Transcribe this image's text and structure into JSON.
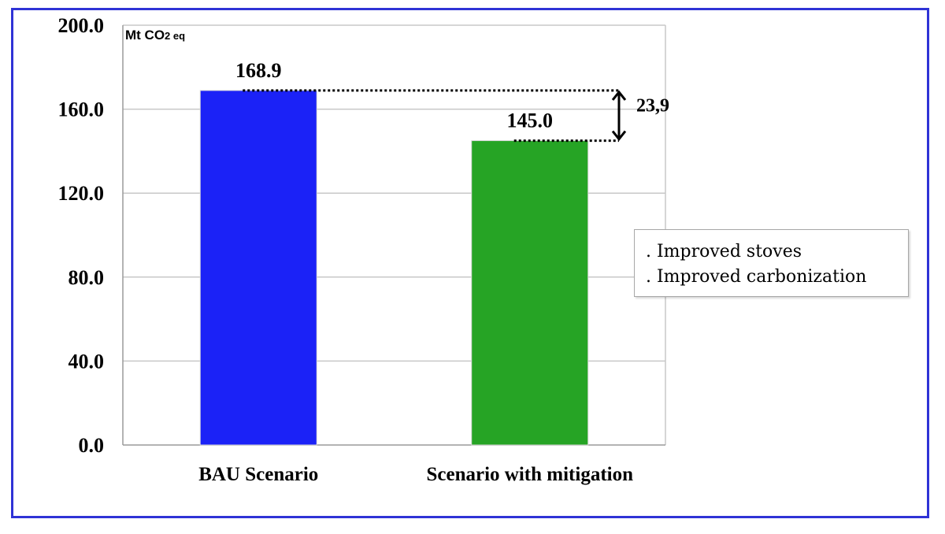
{
  "chart_data": {
    "type": "bar",
    "ylabel": "Mt CO2 eq",
    "ylabel_main": "Mt CO",
    "ylabel_sub": "2 eq",
    "ylim": [
      0,
      200
    ],
    "yticks": [
      "0.0",
      "40.0",
      "80.0",
      "120.0",
      "160.0",
      "200.0"
    ],
    "ytick_values": [
      0,
      40,
      80,
      120,
      160,
      200
    ],
    "grid": true,
    "categories": [
      "BAU Scenario",
      "Scenario with mitigation"
    ],
    "values": [
      168.9,
      145.0
    ],
    "value_labels": [
      "168.9",
      "145.0"
    ],
    "colors": [
      "#1b22f7",
      "#26a425"
    ],
    "difference": {
      "label": "23,9",
      "from": 168.9,
      "to": 145.0
    },
    "notes": [
      ". Improved stoves",
      ". Improved carbonization"
    ]
  }
}
